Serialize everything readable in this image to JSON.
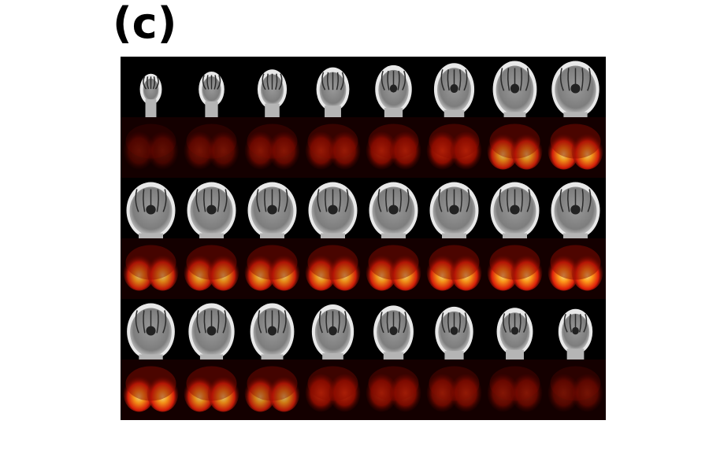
{
  "panel_label": "(c)"
}
